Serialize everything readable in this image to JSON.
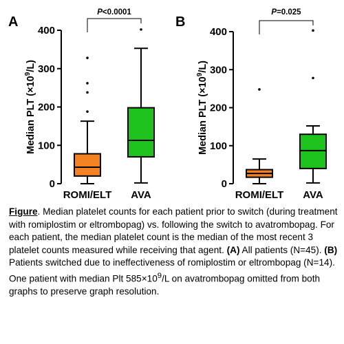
{
  "chart_data": [
    {
      "type": "boxplot",
      "panel_label": "A",
      "ylabel_main": "Median PLT (×10",
      "ylabel_sup": "9",
      "ylabel_end": "/L)",
      "ylim": [
        0,
        400
      ],
      "yticks": [
        0,
        100,
        200,
        300,
        400
      ],
      "categories": [
        "ROMI/ELT",
        "AVA"
      ],
      "significance": {
        "p_prefix": "P",
        "p_rest": "<0.0001"
      },
      "colors": [
        "#f58220",
        "#1dc21d"
      ],
      "boxes": [
        {
          "whisker_low": 0,
          "q1": 20,
          "median": 43,
          "q3": 78,
          "whisker_high": 163,
          "outliers": [
            188,
            238,
            262,
            328
          ]
        },
        {
          "whisker_low": 2,
          "q1": 70,
          "median": 113,
          "q3": 198,
          "whisker_high": 353,
          "outliers": [
            402
          ]
        }
      ]
    },
    {
      "type": "boxplot",
      "panel_label": "B",
      "ylabel_main": "Median PLT (×10",
      "ylabel_sup": "9",
      "ylabel_end": "/L)",
      "ylim": [
        0,
        400
      ],
      "yticks": [
        0,
        100,
        200,
        300,
        400
      ],
      "categories": [
        "ROMI/ELT",
        "AVA"
      ],
      "significance": {
        "p_prefix": "P",
        "p_rest": "=0.025"
      },
      "colors": [
        "#f58220",
        "#1dc21d"
      ],
      "boxes": [
        {
          "whisker_low": 0,
          "q1": 17,
          "median": 27,
          "q3": 37,
          "whisker_high": 65,
          "outliers": [
            248
          ]
        },
        {
          "whisker_low": 2,
          "q1": 40,
          "median": 87,
          "q3": 130,
          "whisker_high": 152,
          "outliers": [
            278,
            403
          ]
        }
      ]
    }
  ],
  "caption": {
    "label": "Figure",
    "t1": ". Median platelet counts for each patient prior to switch (during treatment with romiplostim or eltrombopag) vs. following the switch to avatrombopag. For each patient, the median platelet count is the median of the most recent 3 platelet counts measured while receiving that agent. ",
    "a_label": "(A)",
    "t2": " All patients (N=45). ",
    "b_label": "(B)",
    "t3": " Patients switched due to ineffectiveness of romiplostim or eltrombopag (N=14). One patient with median Plt 585×10",
    "sup": "9",
    "t4": "/L on avatrombopag omitted from both graphs to preserve graph resolution."
  }
}
